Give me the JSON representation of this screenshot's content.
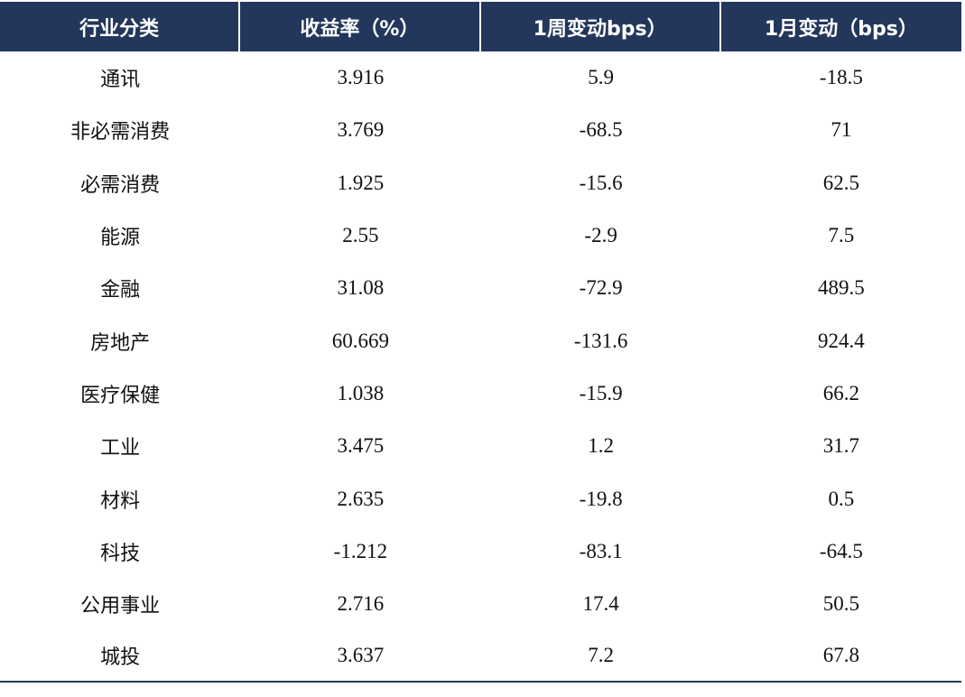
{
  "table": {
    "headers": [
      "行业分类",
      "收益率（%）",
      "1周变动bps）",
      "1月变动（bps）"
    ],
    "rows": [
      [
        "通讯",
        "3.916",
        "5.9",
        "-18.5"
      ],
      [
        "非必需消费",
        "3.769",
        "-68.5",
        "71"
      ],
      [
        "必需消费",
        "1.925",
        "-15.6",
        "62.5"
      ],
      [
        "能源",
        "2.55",
        "-2.9",
        "7.5"
      ],
      [
        "金融",
        "31.08",
        "-72.9",
        "489.5"
      ],
      [
        "房地产",
        "60.669",
        "-131.6",
        "924.4"
      ],
      [
        "医疗保健",
        "1.038",
        "-15.9",
        "66.2"
      ],
      [
        "工业",
        "3.475",
        "1.2",
        "31.7"
      ],
      [
        "材料",
        "2.635",
        "-19.8",
        "0.5"
      ],
      [
        "科技",
        "-1.212",
        "-83.1",
        "-64.5"
      ],
      [
        "公用事业",
        "2.716",
        "17.4",
        "50.5"
      ],
      [
        "城投",
        "3.637",
        "7.2",
        "67.8"
      ]
    ]
  }
}
